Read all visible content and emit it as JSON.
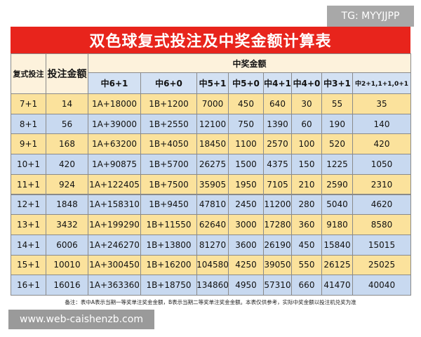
{
  "watermark_top": "TG: MYYJJPP",
  "title": "双色球复式投注及中奖金额计算表",
  "table": {
    "headers": [
      "复式投注",
      "投注金额",
      "中奖金额"
    ],
    "subheaders": [
      "中6+1",
      "中6+0",
      "中5+1",
      "中5+0",
      "中4+1",
      "中4+0",
      "中3+1",
      "中2+1,1+1,0+1"
    ],
    "rows": [
      [
        "7+1",
        "14",
        "1A+18000",
        "1B+1200",
        "7000",
        "450",
        "640",
        "30",
        "55",
        "35"
      ],
      [
        "8+1",
        "56",
        "1A+39000",
        "1B+2550",
        "12100",
        "750",
        "1390",
        "60",
        "190",
        "140"
      ],
      [
        "9+1",
        "168",
        "1A+63200",
        "1B+4050",
        "18450",
        "1100",
        "2570",
        "100",
        "520",
        "420"
      ],
      [
        "10+1",
        "420",
        "1A+90875",
        "1B+5700",
        "26275",
        "1500",
        "4375",
        "150",
        "1225",
        "1050"
      ],
      [
        "11+1",
        "924",
        "1A+122405",
        "1B+7500",
        "35905",
        "1950",
        "7105",
        "210",
        "2590",
        "2310"
      ],
      [
        "12+1",
        "1848",
        "1A+158310",
        "1B+9450",
        "47810",
        "2450",
        "11200",
        "280",
        "5040",
        "4620"
      ],
      [
        "13+1",
        "3432",
        "1A+199290",
        "1B+11550",
        "62640",
        "3000",
        "17280",
        "360",
        "9180",
        "8580"
      ],
      [
        "14+1",
        "6006",
        "1A+246270",
        "1B+13800",
        "81270",
        "3600",
        "26190",
        "450",
        "15840",
        "15015"
      ],
      [
        "15+1",
        "10010",
        "1A+300450",
        "1B+16200",
        "104580",
        "4250",
        "39050",
        "550",
        "26125",
        "25025"
      ],
      [
        "16+1",
        "16016",
        "1A+363360",
        "1B+18750",
        "134860",
        "4950",
        "57310",
        "660",
        "41470",
        "40040"
      ]
    ]
  },
  "note": "备注：表中A表示当期一等奖单注奖金金额，B表示当期二等奖单注奖金金额。本表仅供参考，实际中奖金额以投注机兑奖为准",
  "watermark_bottom": "www.web-caishenzb.com"
}
